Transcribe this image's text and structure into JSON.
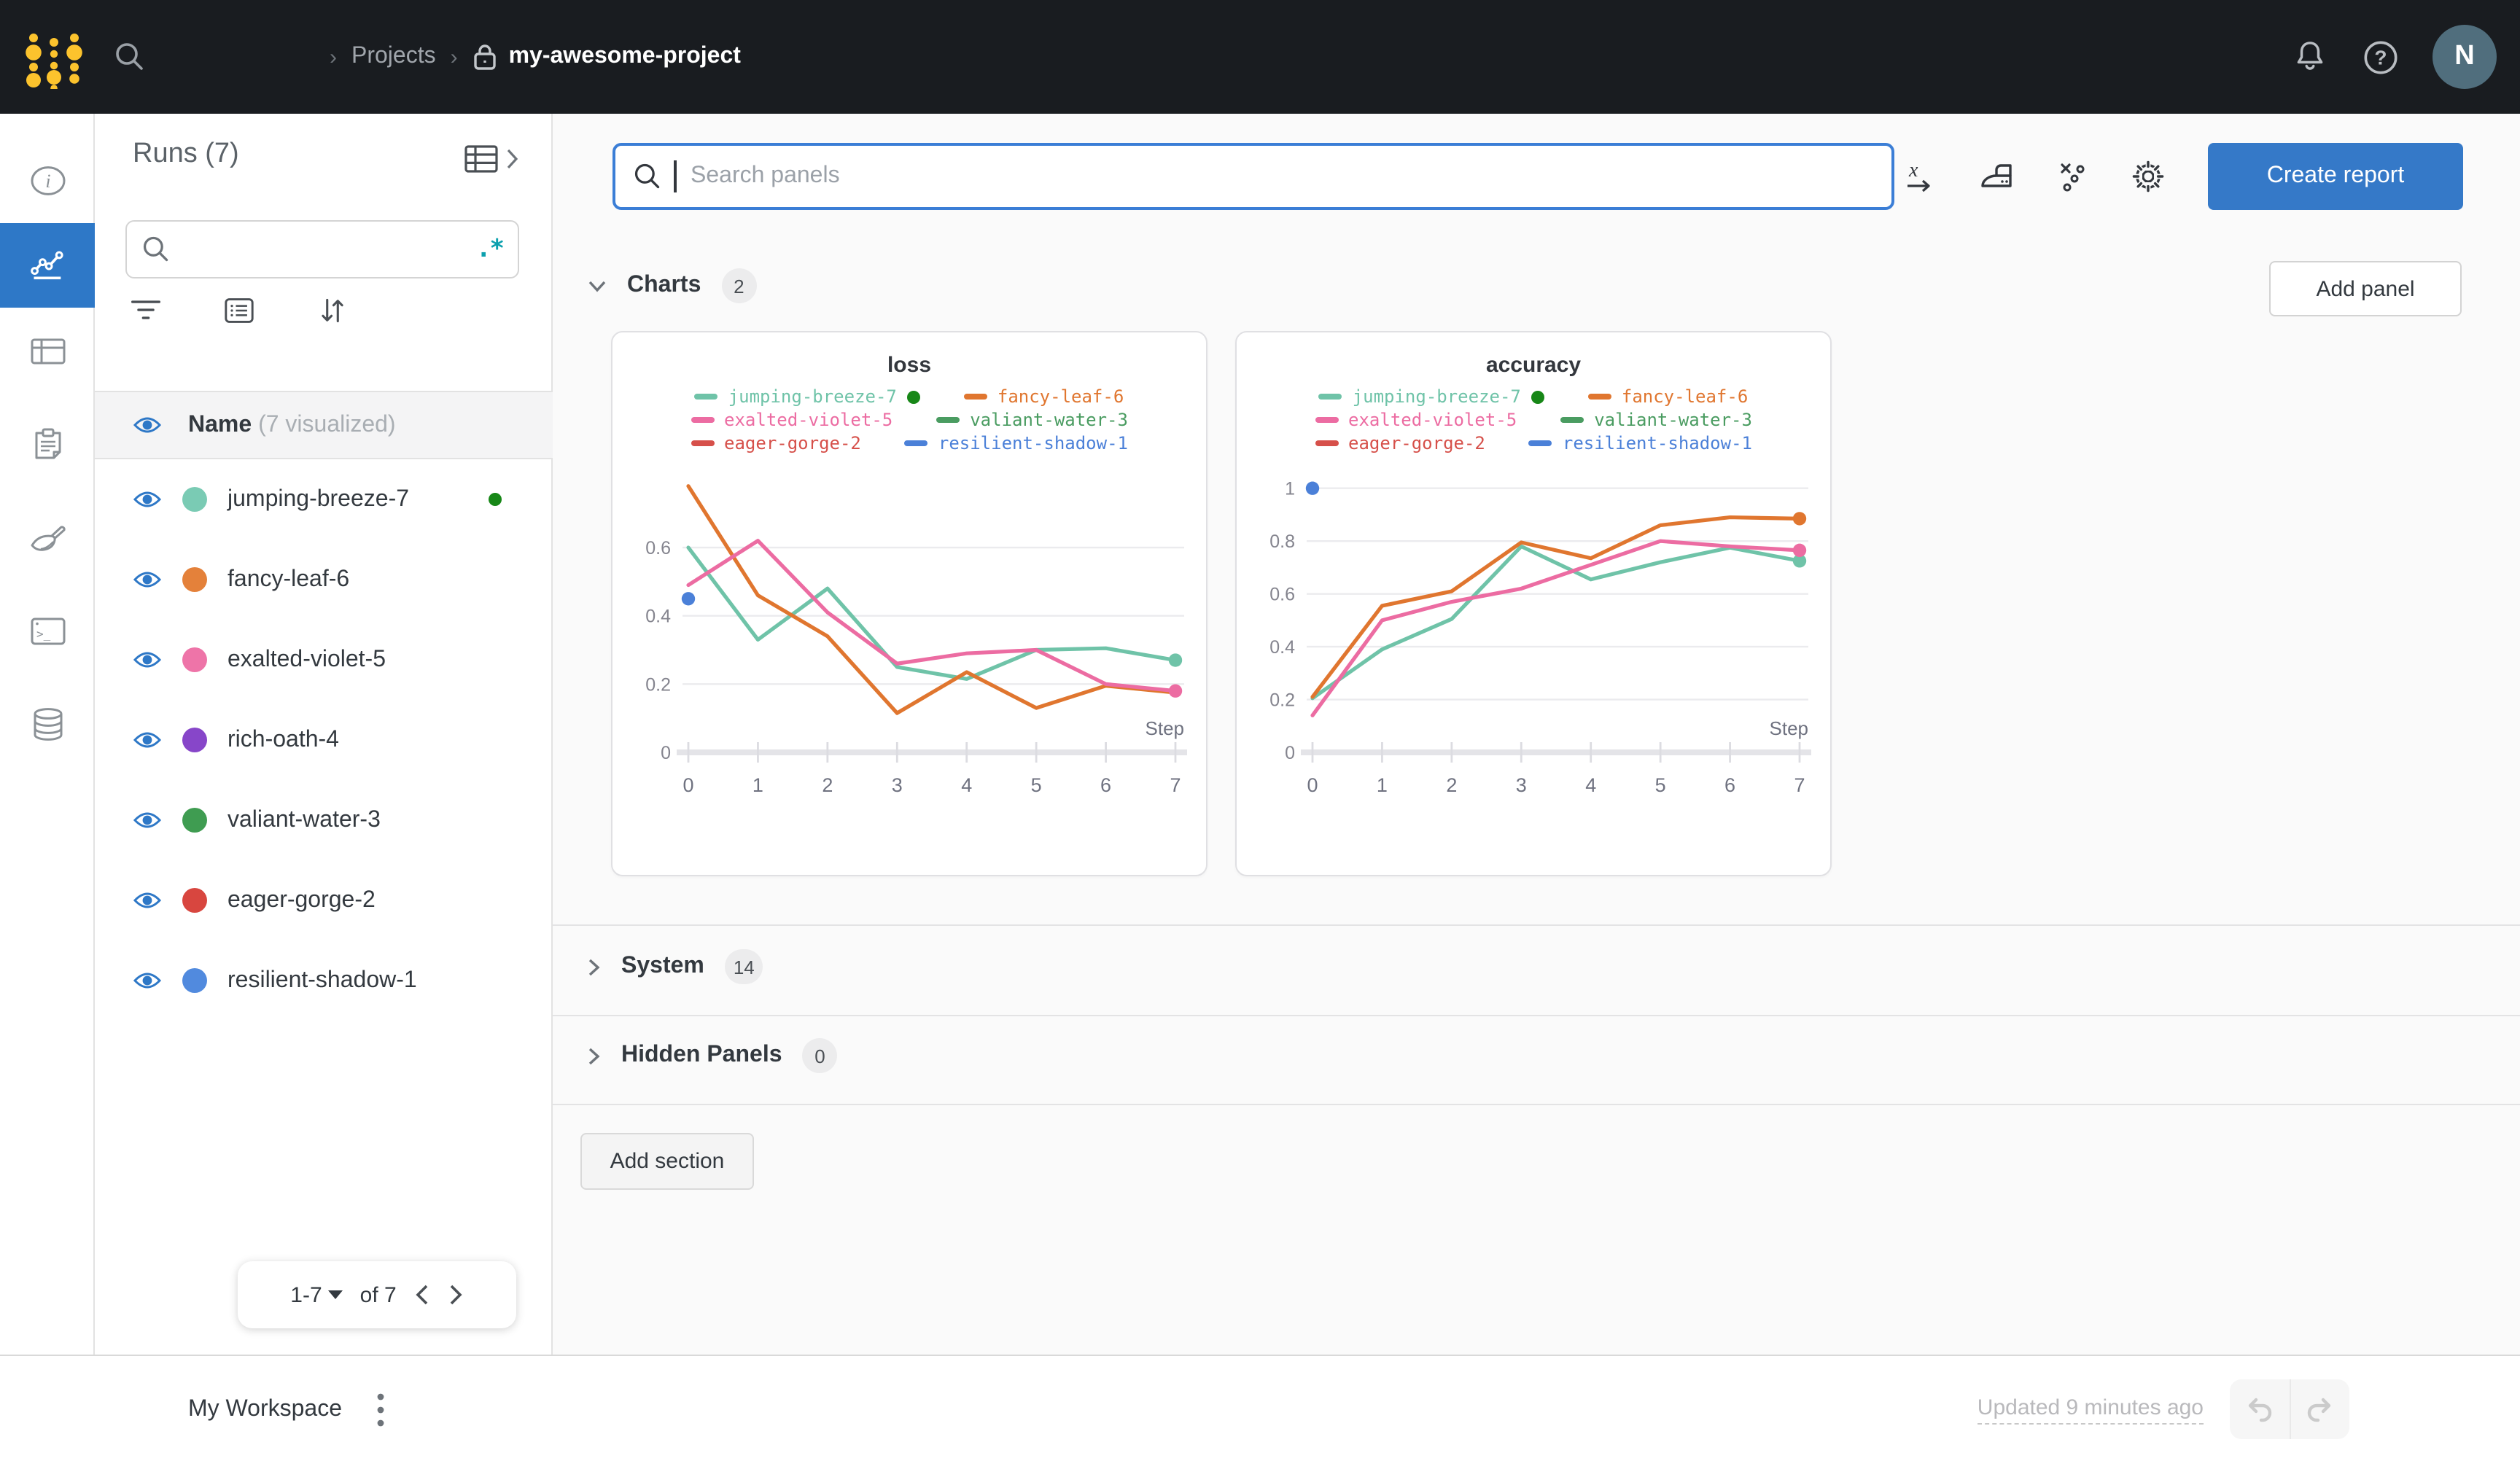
{
  "topbar": {
    "breadcrumb": {
      "section": "Projects",
      "project": "my-awesome-project"
    },
    "avatar_initial": "N",
    "icons": [
      "search-icon",
      "bell-icon",
      "help-icon"
    ]
  },
  "icon_rail": {
    "items": [
      {
        "icon": "info-icon",
        "active": false
      },
      {
        "icon": "line-chart-icon",
        "active": true
      },
      {
        "icon": "table-icon",
        "active": false
      },
      {
        "icon": "clipboard-icon",
        "active": false
      },
      {
        "icon": "brush-icon",
        "active": false
      },
      {
        "icon": "terminal-icon",
        "active": false
      },
      {
        "icon": "database-icon",
        "active": false
      }
    ],
    "active_color": "#2e78c7"
  },
  "sidebar": {
    "title": "Runs (7)",
    "search_value": "",
    "regex_label": ".*",
    "columns": {
      "name": "Name",
      "visualized_note": "(7 visualized)"
    },
    "runs": [
      {
        "name": "jumping-breeze-7",
        "color": "#7acbb4",
        "active": true
      },
      {
        "name": "fancy-leaf-6",
        "color": "#e4813a",
        "active": false
      },
      {
        "name": "exalted-violet-5",
        "color": "#ee74a8",
        "active": false
      },
      {
        "name": "rich-oath-4",
        "color": "#8746c9",
        "active": false
      },
      {
        "name": "valiant-water-3",
        "color": "#3f9c51",
        "active": false
      },
      {
        "name": "eager-gorge-2",
        "color": "#d8463f",
        "active": false
      },
      {
        "name": "resilient-shadow-1",
        "color": "#518ade",
        "active": false
      }
    ],
    "pagination": {
      "range": "1-7",
      "of": "of 7"
    }
  },
  "toolbar": {
    "search_placeholder": "Search panels",
    "icons": [
      "x-axis-icon",
      "smoothing-icon",
      "outliers-icon",
      "settings-gear-icon"
    ],
    "create_report_label": "Create report"
  },
  "sections": {
    "charts": {
      "label": "Charts",
      "count": "2"
    },
    "system": {
      "label": "System",
      "count": "14"
    },
    "hidden": {
      "label": "Hidden Panels",
      "count": "0"
    },
    "add_panel_label": "Add panel",
    "add_section_label": "Add section"
  },
  "footer": {
    "workspace_label": "My Workspace",
    "updated_label": "Updated 9 minutes ago",
    "icons": [
      "kebab-menu-icon",
      "undo-icon",
      "redo-icon"
    ]
  },
  "active_run_dot_color": "#178717",
  "chart_data": [
    {
      "type": "line",
      "title": "loss",
      "xlabel": "Step",
      "x": [
        0,
        1,
        2,
        3,
        4,
        5,
        6,
        7
      ],
      "ylim": [
        0,
        0.82
      ],
      "yticks": [
        0,
        0.2,
        0.4,
        0.6
      ],
      "grid": true,
      "legend_position": "top",
      "series": [
        {
          "name": "jumping-breeze-7",
          "color": "#6fc3a8",
          "active": true,
          "values": [
            0.6,
            0.33,
            0.48,
            0.25,
            0.215,
            0.3,
            0.305,
            0.27
          ],
          "end_dot": true
        },
        {
          "name": "fancy-leaf-6",
          "color": "#e0762f",
          "active": false,
          "values": [
            0.78,
            0.46,
            0.34,
            0.115,
            0.235,
            0.13,
            0.195,
            0.175
          ],
          "end_dot": false
        },
        {
          "name": "exalted-violet-5",
          "color": "#ec6ca2",
          "active": false,
          "values": [
            0.49,
            0.62,
            0.41,
            0.26,
            0.29,
            0.3,
            0.2,
            0.18
          ],
          "end_dot": true
        },
        {
          "name": "valiant-water-3",
          "color": "#4a9c61",
          "active": false,
          "values": [],
          "end_dot": false
        },
        {
          "name": "eager-gorge-2",
          "color": "#d6504a",
          "active": false,
          "values": [],
          "end_dot": false
        },
        {
          "name": "resilient-shadow-1",
          "color": "#4b80d8",
          "active": false,
          "values": [],
          "point": [
            0,
            0.45
          ],
          "end_dot": false
        }
      ]
    },
    {
      "type": "line",
      "title": "accuracy",
      "xlabel": "Step",
      "x": [
        0,
        1,
        2,
        3,
        4,
        5,
        6,
        7
      ],
      "ylim": [
        0,
        1.06
      ],
      "yticks": [
        0,
        0.2,
        0.4,
        0.6,
        0.8,
        1
      ],
      "grid": true,
      "legend_position": "top",
      "series": [
        {
          "name": "jumping-breeze-7",
          "color": "#6fc3a8",
          "active": true,
          "values": [
            0.205,
            0.39,
            0.505,
            0.78,
            0.655,
            0.72,
            0.775,
            0.725
          ],
          "end_dot": true
        },
        {
          "name": "exalted-violet-5",
          "color": "#ec6ca2",
          "active": false,
          "values": [
            0.14,
            0.5,
            0.57,
            0.62,
            0.71,
            0.8,
            0.78,
            0.765
          ],
          "end_dot": true
        },
        {
          "name": "fancy-leaf-6",
          "color": "#e0762f",
          "active": false,
          "values": [
            0.21,
            0.555,
            0.61,
            0.795,
            0.735,
            0.86,
            0.89,
            0.885
          ],
          "end_dot": true
        },
        {
          "name": "valiant-water-3",
          "color": "#4a9c61",
          "active": false,
          "values": [],
          "end_dot": false
        },
        {
          "name": "eager-gorge-2",
          "color": "#d6504a",
          "active": false,
          "values": [],
          "end_dot": false
        },
        {
          "name": "resilient-shadow-1",
          "color": "#4b80d8",
          "active": false,
          "values": [],
          "point": [
            0,
            1.0
          ],
          "end_dot": false
        }
      ],
      "legend_order": [
        "jumping-breeze-7",
        "fancy-leaf-6",
        "exalted-violet-5",
        "valiant-water-3",
        "eager-gorge-2",
        "resilient-shadow-1"
      ]
    }
  ]
}
